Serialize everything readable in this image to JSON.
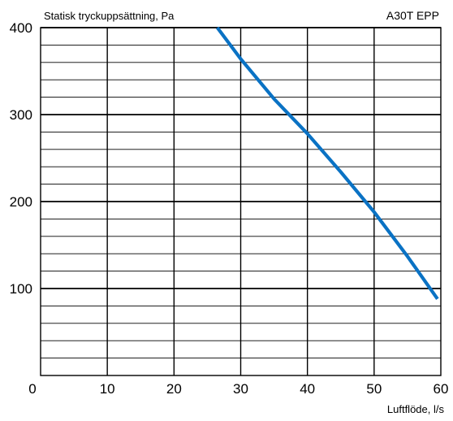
{
  "chart_data": {
    "type": "line",
    "title": "A30T EPP",
    "ylabel": "Statisk tryckuppsättning, Pa",
    "xlabel": "Luftflöde, l/s",
    "xlim": [
      0,
      60
    ],
    "ylim": [
      0,
      400
    ],
    "x_ticks": [
      "0",
      "10",
      "20",
      "30",
      "40",
      "50",
      "60"
    ],
    "y_ticks": [
      "100",
      "200",
      "300",
      "400"
    ],
    "minor_y_step": 20,
    "grid": true,
    "series": [
      {
        "name": "",
        "color": "#0a72c4",
        "x": [
          26.5,
          30,
          35,
          40,
          45,
          50,
          55,
          59.5
        ],
        "y": [
          400,
          364,
          318,
          278,
          234,
          188,
          137,
          88
        ]
      }
    ]
  }
}
